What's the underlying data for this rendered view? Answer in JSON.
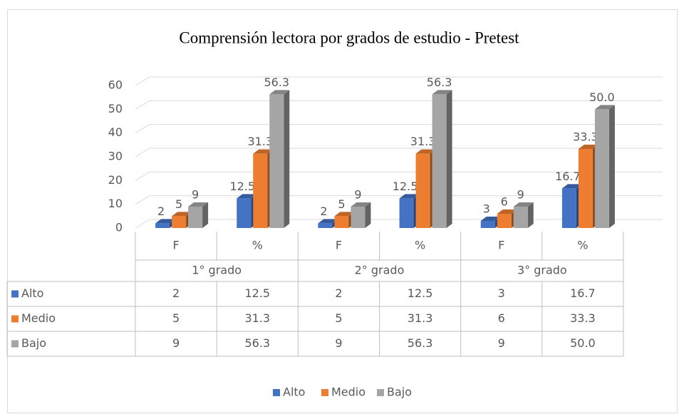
{
  "chart_data": {
    "type": "bar3d",
    "title": "Comprensión lectora por grados de estudio - Pretest",
    "categories": [
      "F",
      "%",
      "F",
      "%",
      "F",
      "%"
    ],
    "groups": [
      "1° grado",
      "2° grado",
      "3° grado"
    ],
    "series": [
      {
        "name": "Alto",
        "color": "#4472c4",
        "values": [
          2,
          12.5,
          2,
          12.5,
          3,
          16.7
        ]
      },
      {
        "name": "Medio",
        "color": "#ed7d31",
        "values": [
          5,
          31.3,
          5,
          31.3,
          6,
          33.3
        ]
      },
      {
        "name": "Bajo",
        "color": "#a5a5a5",
        "values": [
          9,
          56.3,
          9,
          56.3,
          9,
          50.0
        ],
        "value_labels": [
          "9",
          "56.3",
          "9",
          "56.3",
          "9",
          "50.0"
        ]
      }
    ],
    "ylim": [
      0,
      60
    ],
    "yticks": [
      0,
      10,
      20,
      30,
      40,
      50,
      60
    ],
    "grid": true,
    "legend": "bottom"
  }
}
